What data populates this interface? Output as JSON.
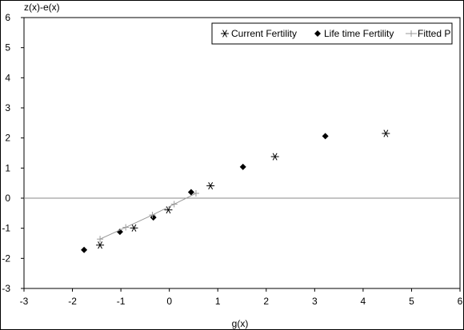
{
  "chart_data": {
    "type": "scatter",
    "xlabel": "g(x)",
    "ylabel": "z(x)-e(x)",
    "xlim": [
      -3,
      6
    ],
    "ylim": [
      -3,
      6
    ],
    "x_ticks": [
      "-3",
      "-2",
      "-1",
      "0",
      "1",
      "2",
      "3",
      "4",
      "5",
      "6"
    ],
    "y_ticks": [
      "-3",
      "-2",
      "-1",
      "0",
      "1",
      "2",
      "3",
      "4",
      "5",
      "6"
    ],
    "grid": false,
    "zero_line": true,
    "legend_position": "top-right",
    "series": [
      {
        "name": "Current Fertility",
        "marker": "asterisk",
        "color": "#000000",
        "points": [
          {
            "x": -1.43,
            "y": -1.56
          },
          {
            "x": -0.73,
            "y": -0.99
          },
          {
            "x": -0.02,
            "y": -0.39
          },
          {
            "x": 0.85,
            "y": 0.41
          },
          {
            "x": 2.18,
            "y": 1.38
          },
          {
            "x": 4.47,
            "y": 2.15
          }
        ]
      },
      {
        "name": "Life time Fertility",
        "marker": "diamond",
        "color": "#000000",
        "points": [
          {
            "x": -1.76,
            "y": -1.72
          },
          {
            "x": -1.02,
            "y": -1.12
          },
          {
            "x": -0.33,
            "y": -0.64
          },
          {
            "x": 0.45,
            "y": 0.2
          },
          {
            "x": 1.52,
            "y": 1.04
          },
          {
            "x": 3.22,
            "y": 2.06
          }
        ]
      },
      {
        "name": "Fitted P",
        "marker": "plus-line",
        "color": "#999999",
        "points": [
          {
            "x": -1.43,
            "y": -1.36
          },
          {
            "x": -0.9,
            "y": -0.97
          },
          {
            "x": -0.35,
            "y": -0.56
          },
          {
            "x": 0.1,
            "y": -0.2
          },
          {
            "x": 0.55,
            "y": 0.16
          }
        ]
      }
    ]
  }
}
